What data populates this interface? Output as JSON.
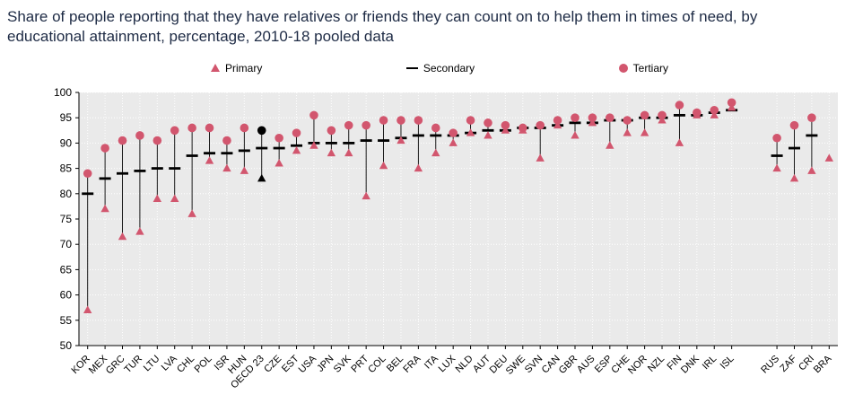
{
  "title": "Share of people reporting that they have relatives or friends they can count on to help them in times of need, by educational attainment, percentage, 2010-18 pooled data",
  "legend": [
    {
      "label": "Primary",
      "marker": "triangle",
      "color": "#d2566e"
    },
    {
      "label": "Secondary",
      "marker": "dash",
      "color": "#000000"
    },
    {
      "label": "Tertiary",
      "marker": "circle",
      "color": "#d2566e"
    }
  ],
  "colors": {
    "marker_red": "#d2566e",
    "secondary_black": "#000000",
    "highlight_black": "#000000",
    "plot_bg": "#eaeaea",
    "grid": "#ffffff",
    "axis": "#000000",
    "title_color": "#1e2b45"
  },
  "chart_data": {
    "type": "scatter",
    "title": "Share of people reporting that they have relatives or friends they can count on to help them in times of need, by educational attainment, percentage, 2010-18 pooled data",
    "xlabel": "",
    "ylabel": "",
    "ylim": [
      50,
      100
    ],
    "yticks": [
      50,
      55,
      60,
      65,
      70,
      75,
      80,
      85,
      90,
      95,
      100
    ],
    "grid": true,
    "legend_position": "top",
    "highlight_category": "OECD 23",
    "gap_after": "ISL",
    "categories": [
      "KOR",
      "MEX",
      "GRC",
      "TUR",
      "LTU",
      "LVA",
      "CHL",
      "POL",
      "ISR",
      "HUN",
      "OECD 23",
      "CZE",
      "EST",
      "USA",
      "JPN",
      "SVK",
      "PRT",
      "COL",
      "BEL",
      "FRA",
      "ITA",
      "LUX",
      "NLD",
      "AUT",
      "DEU",
      "SWE",
      "SVN",
      "CAN",
      "GBR",
      "AUS",
      "ESP",
      "CHE",
      "NOR",
      "NZL",
      "FIN",
      "DNK",
      "IRL",
      "ISL",
      "RUS",
      "ZAF",
      "CRI",
      "BRA"
    ],
    "series": [
      {
        "name": "Primary",
        "marker": "triangle",
        "values": [
          57,
          77,
          71.5,
          72.5,
          79,
          79,
          76,
          86.5,
          85,
          84.5,
          83,
          86,
          88.5,
          89.5,
          88,
          88,
          79.5,
          85.5,
          90.5,
          85,
          88,
          90,
          92,
          91.5,
          92.5,
          92.5,
          87,
          93.5,
          91.5,
          94,
          89.5,
          92,
          92,
          94.5,
          90,
          95.5,
          95.5,
          97,
          85,
          83,
          84.5,
          87
        ]
      },
      {
        "name": "Secondary",
        "marker": "dash",
        "values": [
          80,
          83,
          84,
          84.5,
          85,
          85,
          87.5,
          88,
          88,
          88.5,
          89,
          89,
          89.5,
          90,
          90,
          90,
          90.5,
          90.5,
          91,
          91.5,
          91.5,
          91.5,
          92,
          92.5,
          92.5,
          93,
          93,
          93.5,
          94,
          94,
          94.5,
          94.5,
          95,
          95,
          95.5,
          95.5,
          96,
          96.5,
          87.5,
          89,
          91.5,
          null
        ]
      },
      {
        "name": "Tertiary",
        "marker": "circle",
        "values": [
          84,
          89,
          90.5,
          91.5,
          90.5,
          92.5,
          93,
          93,
          90.5,
          93,
          92.5,
          91,
          92,
          95.5,
          92.5,
          93.5,
          93.5,
          94.5,
          94.5,
          94.5,
          93,
          92,
          94.5,
          94,
          93.5,
          93,
          93.5,
          94.5,
          95,
          95,
          95,
          94.5,
          95.5,
          95.5,
          97.5,
          96,
          96.5,
          98,
          91,
          93.5,
          95,
          null
        ]
      }
    ]
  }
}
